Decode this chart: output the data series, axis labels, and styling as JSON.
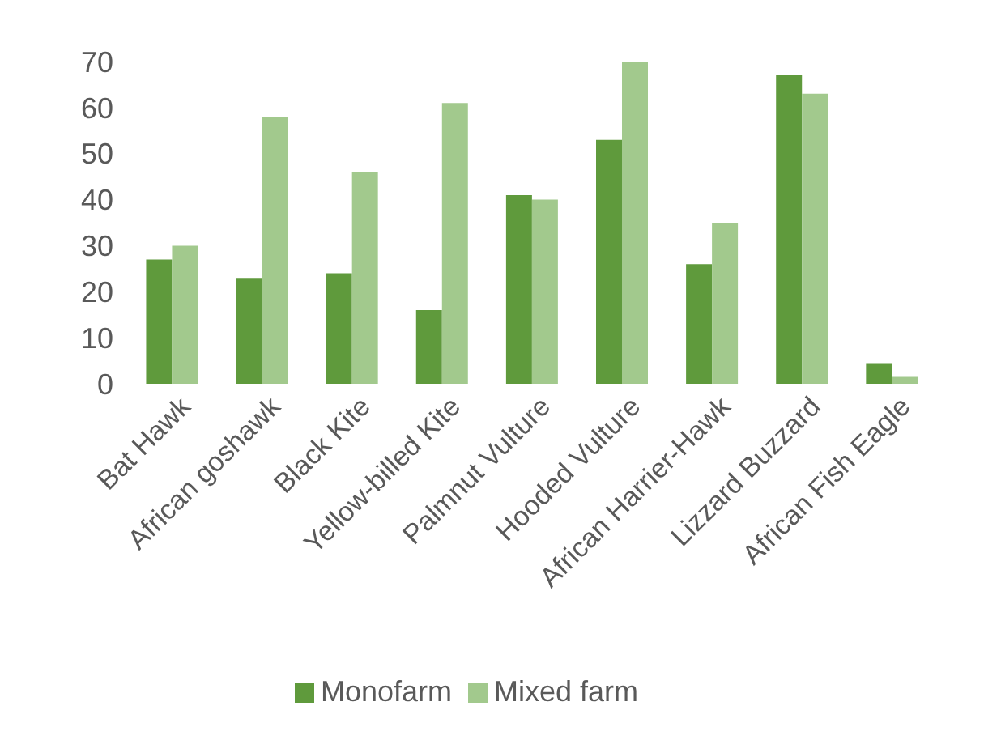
{
  "chart_data": {
    "type": "bar",
    "categories": [
      "Bat Hawk",
      "African goshawk",
      "Black Kite",
      "Yellow-billed Kite",
      "Palmnut Vulture",
      "Hooded Vulture",
      "African Harrier-Hawk",
      "Lizzard Buzzard",
      "African Fish Eagle"
    ],
    "series": [
      {
        "name": "Monofarm",
        "color": "#5f9a3c",
        "values": [
          27,
          23,
          24,
          16,
          41,
          53,
          26,
          67,
          4.5
        ]
      },
      {
        "name": "Mixed farm",
        "color": "#a2c98d",
        "values": [
          30,
          58,
          46,
          61,
          40,
          70,
          35,
          63,
          1.5
        ]
      }
    ],
    "ylim": [
      0,
      70
    ],
    "yticks": [
      0,
      10,
      20,
      30,
      40,
      50,
      60,
      70
    ],
    "grid": false,
    "legend": "bottom"
  }
}
